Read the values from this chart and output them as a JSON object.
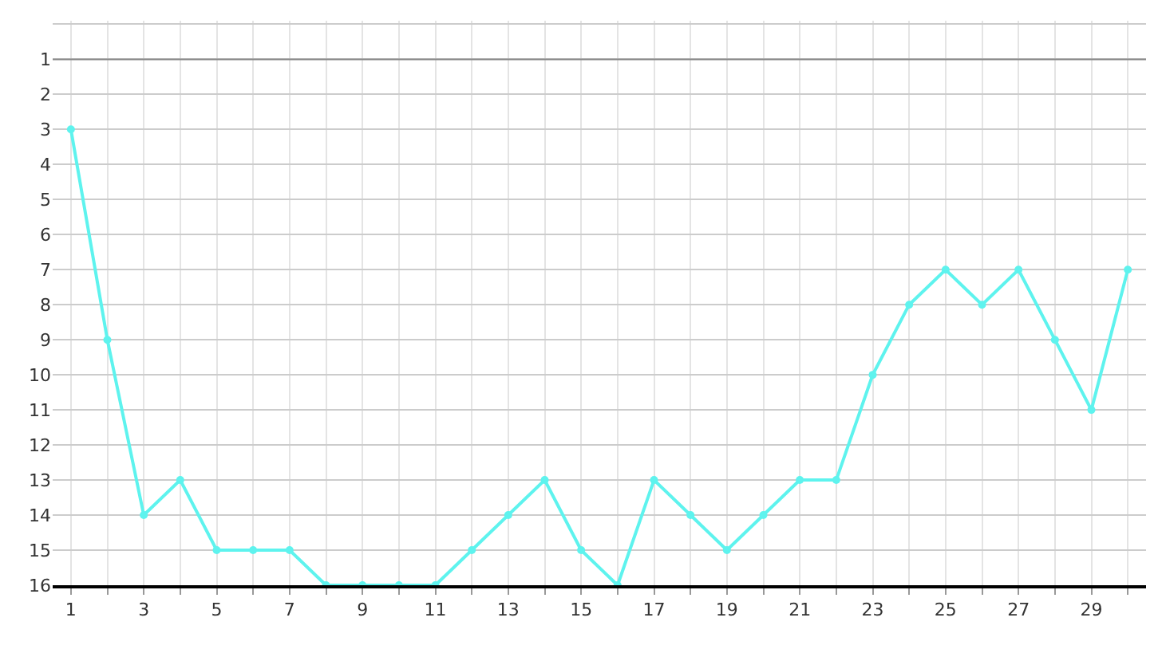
{
  "chart_data": {
    "type": "line",
    "x": [
      1,
      2,
      3,
      4,
      5,
      6,
      7,
      8,
      9,
      10,
      11,
      12,
      13,
      14,
      15,
      16,
      17,
      18,
      19,
      20,
      21,
      22,
      23,
      24,
      25,
      26,
      27,
      28,
      29,
      30
    ],
    "series": [
      {
        "color": "#5ef3ee",
        "values": [
          3,
          9,
          14,
          13,
          15,
          15,
          15,
          16,
          16,
          16,
          16,
          15,
          14,
          13,
          15,
          16,
          13,
          14,
          15,
          14,
          13,
          13,
          10,
          8,
          7,
          8,
          7,
          9,
          11,
          7
        ]
      }
    ],
    "xlim": [
      0.5,
      30.5
    ],
    "xticks": [
      1,
      {
        "value": 2,
        "label": null
      },
      3,
      {
        "value": 4,
        "label": null
      },
      5,
      {
        "value": 6,
        "label": null
      },
      7,
      {
        "value": 8,
        "label": null
      },
      9,
      {
        "value": 10,
        "label": null
      },
      11,
      {
        "value": 12,
        "label": null
      },
      13,
      {
        "value": 14,
        "label": null
      },
      15,
      {
        "value": 16,
        "label": null
      },
      17,
      {
        "value": 18,
        "label": null
      },
      19,
      {
        "value": 20,
        "label": null
      },
      21,
      {
        "value": 22,
        "label": null
      },
      23,
      {
        "value": 24,
        "label": null
      },
      25,
      {
        "value": 26,
        "label": null
      },
      27,
      {
        "value": 28,
        "label": null
      },
      29,
      {
        "value": 30,
        "label": null
      }
    ],
    "ylim": [
      16,
      -0.1
    ],
    "yticks": [
      {
        "value": 0,
        "label": null
      },
      1,
      2,
      3,
      4,
      5,
      6,
      7,
      8,
      9,
      10,
      11,
      12,
      13,
      14,
      15,
      16
    ],
    "ref_lines": [
      {
        "axis": "y",
        "value": 1,
        "color": "#888888"
      }
    ],
    "grid": true,
    "marker": "circle",
    "line_style": "solid"
  }
}
